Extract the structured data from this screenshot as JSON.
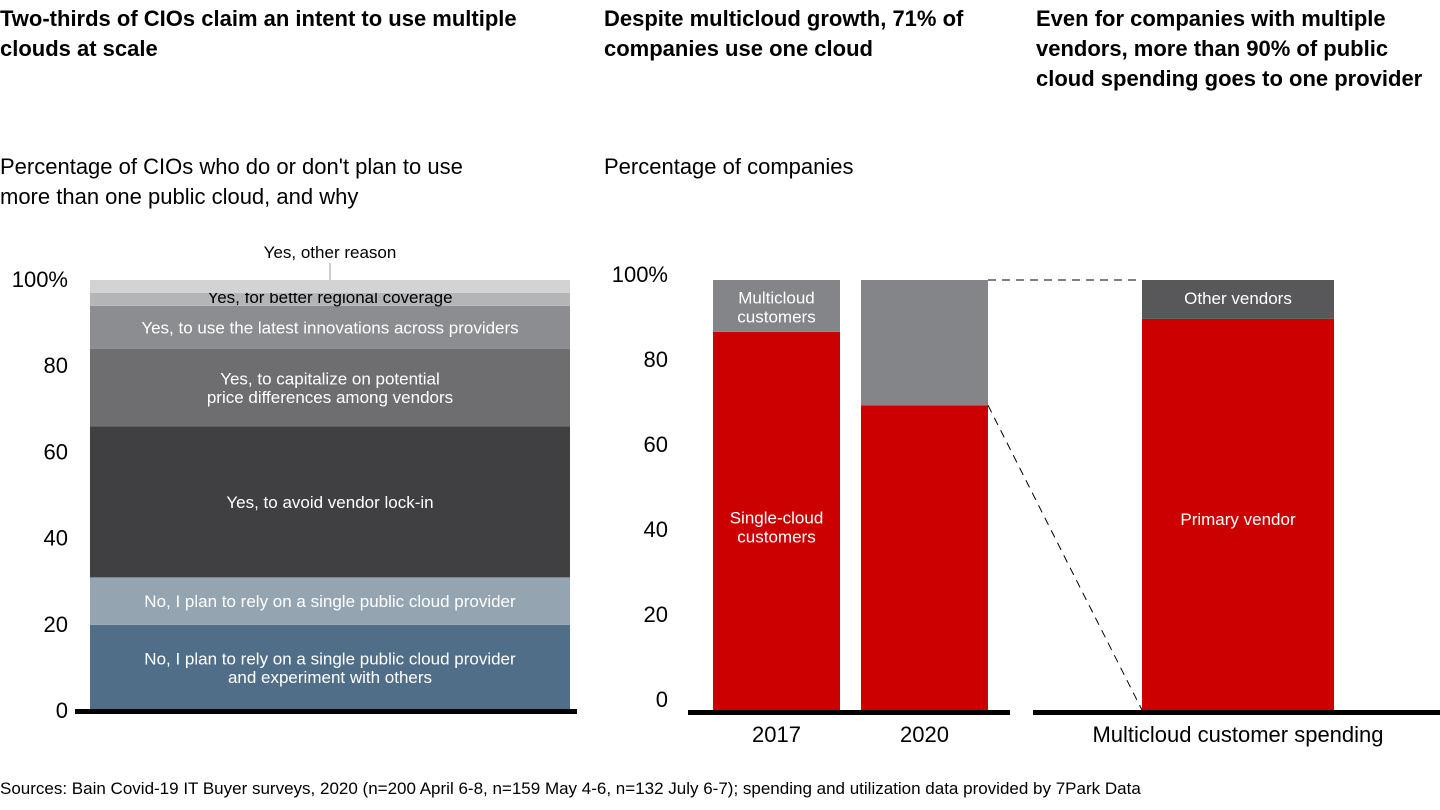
{
  "colors": {
    "red": "#cc0000",
    "gray": "#848589",
    "dark_gray": "#58585a"
  },
  "source": "Sources: Bain Covid-19 IT Buyer surveys, 2020 (n=200 April 6-8, n=159 May 4-6, n=132 July 6-7); spending and utilization data provided by 7Park Data",
  "chart_data": [
    {
      "type": "bar",
      "stacked": true,
      "title": "Two-thirds of CIOs claim an intent to use multiple clouds at scale",
      "subtitle": "Percentage of CIOs who do or don't plan to use more than one public cloud, and why",
      "ylim": [
        0,
        100
      ],
      "yticks": [
        "0",
        "20",
        "40",
        "60",
        "80",
        "100%"
      ],
      "series": [
        {
          "name": "No, I plan to rely on a single public cloud provider and experiment with others",
          "value": 20,
          "color": "#506e87"
        },
        {
          "name": "No, I plan to rely on a single public cloud provider",
          "value": 11,
          "color": "#95a4b1"
        },
        {
          "name": "Yes, to avoid vendor lock-in",
          "value": 35,
          "color": "#404042"
        },
        {
          "name": "Yes, to capitalize on potential price differences among vendors",
          "value": 18,
          "color": "#6e6e71"
        },
        {
          "name": "Yes, to use the latest innovations across providers",
          "value": 10,
          "color": "#8c8d90"
        },
        {
          "name": "Yes, for better regional coverage",
          "value": 3,
          "color": "#b4b5b7"
        },
        {
          "name": "Yes, other reason",
          "value": 3,
          "color": "#d2d3d5"
        }
      ]
    },
    {
      "type": "bar",
      "stacked": true,
      "title": "Despite multicloud growth, 71% of companies use one cloud",
      "subtitle": "Percentage of companies",
      "ylim": [
        0,
        100
      ],
      "yticks": [
        "0",
        "20",
        "40",
        "60",
        "80",
        "100%"
      ],
      "categories": [
        "2017",
        "2020"
      ],
      "series": [
        {
          "name": "Single-cloud customers",
          "values": [
            88,
            71
          ],
          "color": "#cc0000"
        },
        {
          "name": "Multicloud customers",
          "values": [
            12,
            29
          ],
          "color": "#848589"
        }
      ]
    },
    {
      "type": "bar",
      "stacked": true,
      "title": "Even for companies with multiple vendors, more than 90% of public cloud spending goes to one provider",
      "categories": [
        "Multicloud customer spending"
      ],
      "series": [
        {
          "name": "Primary vendor",
          "values": [
            91
          ],
          "color": "#cc0000"
        },
        {
          "name": "Other vendors",
          "values": [
            9
          ],
          "color": "#58585a"
        }
      ]
    }
  ]
}
